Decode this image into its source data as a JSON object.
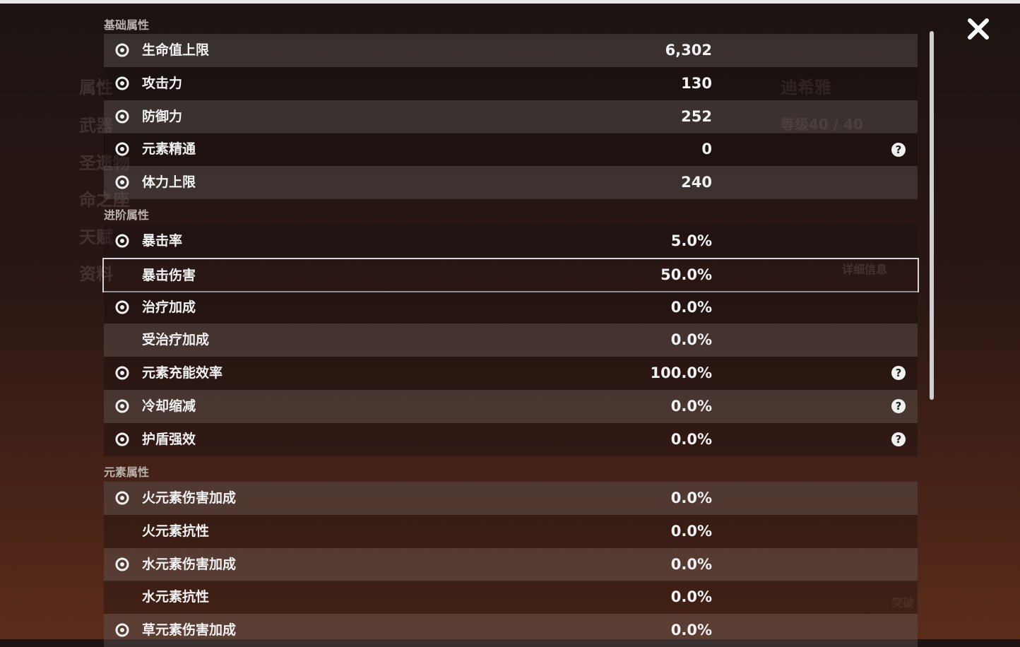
{
  "background": {
    "menu": [
      "属性",
      "武器",
      "圣遗物",
      "命之座",
      "天赋",
      "资料"
    ],
    "character_name": "迪希雅",
    "level": "等级40 / 40",
    "details_button": "详细信息",
    "ascend_button": "突破"
  },
  "sections": [
    {
      "title": "基础属性",
      "rows": [
        {
          "label": "生命值上限",
          "value": "6,302"
        },
        {
          "label": "攻击力",
          "value": "130"
        },
        {
          "label": "防御力",
          "value": "252"
        },
        {
          "label": "元素精通",
          "value": "0"
        },
        {
          "label": "体力上限",
          "value": "240"
        }
      ]
    },
    {
      "title": "进阶属性",
      "rows": [
        {
          "label": "暴击率",
          "value": "5.0%"
        },
        {
          "label": "暴击伤害",
          "value": "50.0%"
        },
        {
          "label": "治疗加成",
          "value": "0.0%"
        },
        {
          "label": "受治疗加成",
          "value": "0.0%"
        },
        {
          "label": "元素充能效率",
          "value": "100.0%"
        },
        {
          "label": "冷却缩减",
          "value": "0.0%"
        },
        {
          "label": "护盾强效",
          "value": "0.0%"
        }
      ]
    },
    {
      "title": "元素属性",
      "rows": [
        {
          "label": "火元素伤害加成",
          "value": "0.0%"
        },
        {
          "label": "火元素抗性",
          "value": "0.0%"
        },
        {
          "label": "水元素伤害加成",
          "value": "0.0%"
        },
        {
          "label": "水元素抗性",
          "value": "0.0%"
        },
        {
          "label": "草元素伤害加成",
          "value": "0.0%"
        }
      ]
    }
  ]
}
